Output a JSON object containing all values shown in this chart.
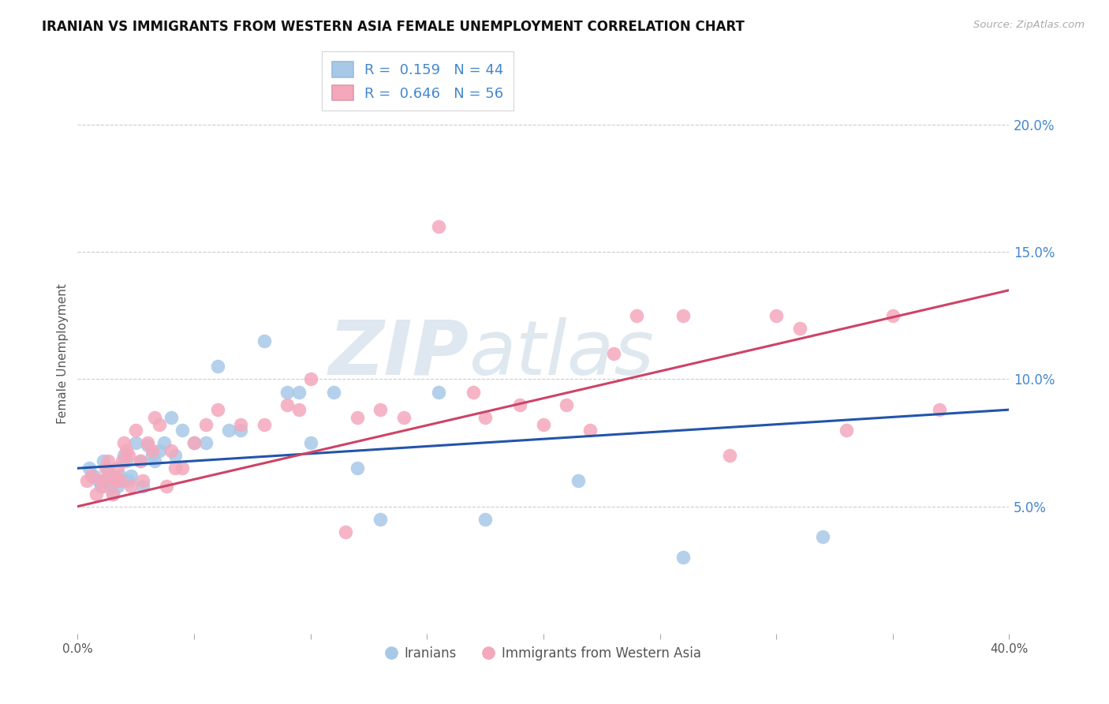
{
  "title": "IRANIAN VS IMMIGRANTS FROM WESTERN ASIA FEMALE UNEMPLOYMENT CORRELATION CHART",
  "source": "Source: ZipAtlas.com",
  "ylabel": "Female Unemployment",
  "y_ticks": [
    0.05,
    0.1,
    0.15,
    0.2
  ],
  "y_tick_labels": [
    "5.0%",
    "10.0%",
    "15.0%",
    "20.0%"
  ],
  "x_ticks": [
    0.0,
    0.05,
    0.1,
    0.15,
    0.2,
    0.25,
    0.3,
    0.35,
    0.4
  ],
  "x_tick_labels": [
    "0.0%",
    "",
    "",
    "",
    "",
    "",
    "",
    "",
    "40.0%"
  ],
  "legend_label1": "Iranians",
  "legend_label2": "Immigrants from Western Asia",
  "legend_R1": "0.159",
  "legend_N1": "44",
  "legend_R2": "0.646",
  "legend_N2": "56",
  "iranians_color": "#a8c8e8",
  "iranians_line_color": "#2255aa",
  "western_asia_color": "#f4a8bc",
  "western_asia_line_color": "#cc4466",
  "watermark_part1": "ZIP",
  "watermark_part2": "atlas",
  "watermark_color1": "#c0cfe0",
  "watermark_color2": "#b0c8e0",
  "background_color": "#ffffff",
  "iranians_x": [
    0.005,
    0.007,
    0.009,
    0.01,
    0.011,
    0.012,
    0.013,
    0.014,
    0.015,
    0.017,
    0.018,
    0.019,
    0.02,
    0.021,
    0.022,
    0.023,
    0.025,
    0.027,
    0.028,
    0.03,
    0.032,
    0.033,
    0.035,
    0.037,
    0.04,
    0.042,
    0.045,
    0.05,
    0.055,
    0.06,
    0.065,
    0.07,
    0.08,
    0.09,
    0.095,
    0.1,
    0.11,
    0.12,
    0.13,
    0.155,
    0.175,
    0.215,
    0.26,
    0.32
  ],
  "iranians_y": [
    0.065,
    0.062,
    0.06,
    0.058,
    0.068,
    0.06,
    0.064,
    0.058,
    0.055,
    0.058,
    0.062,
    0.06,
    0.07,
    0.068,
    0.06,
    0.062,
    0.075,
    0.068,
    0.058,
    0.074,
    0.07,
    0.068,
    0.072,
    0.075,
    0.085,
    0.07,
    0.08,
    0.075,
    0.075,
    0.105,
    0.08,
    0.08,
    0.115,
    0.095,
    0.095,
    0.075,
    0.095,
    0.065,
    0.045,
    0.095,
    0.045,
    0.06,
    0.03,
    0.038
  ],
  "western_asia_x": [
    0.004,
    0.006,
    0.008,
    0.01,
    0.011,
    0.012,
    0.013,
    0.014,
    0.015,
    0.016,
    0.017,
    0.018,
    0.019,
    0.02,
    0.021,
    0.022,
    0.023,
    0.025,
    0.027,
    0.028,
    0.03,
    0.032,
    0.033,
    0.035,
    0.038,
    0.04,
    0.042,
    0.045,
    0.05,
    0.055,
    0.06,
    0.07,
    0.08,
    0.09,
    0.095,
    0.1,
    0.115,
    0.12,
    0.13,
    0.14,
    0.155,
    0.17,
    0.175,
    0.19,
    0.2,
    0.21,
    0.22,
    0.23,
    0.24,
    0.26,
    0.28,
    0.3,
    0.31,
    0.33,
    0.35,
    0.37
  ],
  "western_asia_y": [
    0.06,
    0.062,
    0.055,
    0.06,
    0.058,
    0.065,
    0.068,
    0.062,
    0.055,
    0.06,
    0.065,
    0.06,
    0.068,
    0.075,
    0.072,
    0.07,
    0.058,
    0.08,
    0.068,
    0.06,
    0.075,
    0.072,
    0.085,
    0.082,
    0.058,
    0.072,
    0.065,
    0.065,
    0.075,
    0.082,
    0.088,
    0.082,
    0.082,
    0.09,
    0.088,
    0.1,
    0.04,
    0.085,
    0.088,
    0.085,
    0.16,
    0.095,
    0.085,
    0.09,
    0.082,
    0.09,
    0.08,
    0.11,
    0.125,
    0.125,
    0.07,
    0.125,
    0.12,
    0.08,
    0.125,
    0.088
  ],
  "iran_line_x0": 0.0,
  "iran_line_x1": 0.4,
  "iran_line_y0": 0.065,
  "iran_line_y1": 0.088,
  "west_line_x0": 0.0,
  "west_line_x1": 0.4,
  "west_line_y0": 0.05,
  "west_line_y1": 0.135
}
